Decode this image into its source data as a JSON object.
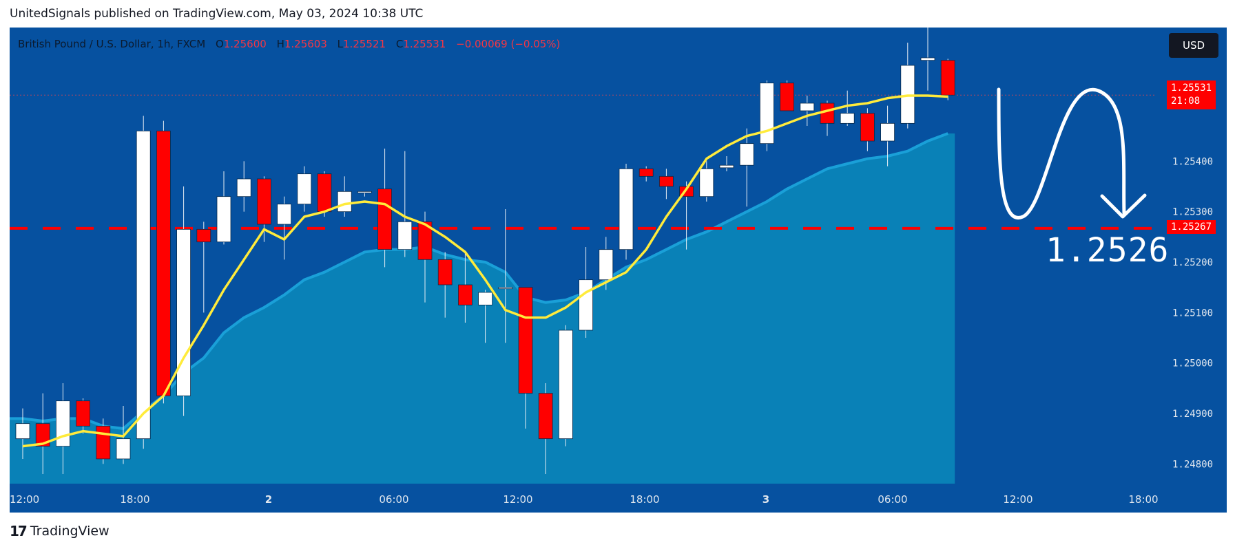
{
  "header": {
    "published_text": "UnitedSignals published on TradingView.com, May 03, 2024 10:38 UTC"
  },
  "legend": {
    "symbol": "British Pound / U.S. Dollar, 1h, FXCM",
    "o_label": "O",
    "o_value": "1.25600",
    "h_label": "H",
    "h_value": "1.25603",
    "l_label": "L",
    "l_value": "1.25521",
    "c_label": "C",
    "c_value": "1.25531",
    "change": "−0.00069 (−0.05%)"
  },
  "currency_button": "USD",
  "price_tags": {
    "last_price": "1.25531",
    "countdown": "21:08",
    "level": "1.25267"
  },
  "annotation": {
    "target_text": "1.2526"
  },
  "footer": {
    "brand": "TradingView"
  },
  "colors": {
    "background": "#0651a0",
    "bull": "#ffffff",
    "bear": "#ff0000",
    "ema_fast": "#ffeb3b",
    "area_fill": "#0a84b8",
    "level_line": "#ff0000"
  },
  "chart_data": {
    "type": "candlestick",
    "title": "British Pound / U.S. Dollar, 1h, FXCM",
    "x_tick_labels": [
      "12:00",
      "18:00",
      "2",
      "06:00",
      "12:00",
      "18:00",
      "3",
      "06:00",
      "12:00",
      "18:00"
    ],
    "y_tick_labels": [
      "1.25400",
      "1.25300",
      "1.25200",
      "1.25100",
      "1.25000",
      "1.24900",
      "1.24800"
    ],
    "ylim": [
      1.24765,
      1.25665
    ],
    "horizontal_level": 1.25267,
    "candles": [
      {
        "o": 1.2485,
        "h": 1.2491,
        "l": 1.2481,
        "c": 1.2488
      },
      {
        "o": 1.2488,
        "h": 1.2494,
        "l": 1.2478,
        "c": 1.24835
      },
      {
        "o": 1.24835,
        "h": 1.2496,
        "l": 1.2478,
        "c": 1.24925
      },
      {
        "o": 1.24925,
        "h": 1.2493,
        "l": 1.2486,
        "c": 1.24875
      },
      {
        "o": 1.24875,
        "h": 1.2489,
        "l": 1.248,
        "c": 1.2481
      },
      {
        "o": 1.2481,
        "h": 1.24915,
        "l": 1.248,
        "c": 1.2485
      },
      {
        "o": 1.2485,
        "h": 1.2549,
        "l": 1.2483,
        "c": 1.2546
      },
      {
        "o": 1.2546,
        "h": 1.2548,
        "l": 1.2492,
        "c": 1.24935
      },
      {
        "o": 1.24935,
        "h": 1.2535,
        "l": 1.24895,
        "c": 1.25265
      },
      {
        "o": 1.25265,
        "h": 1.2528,
        "l": 1.251,
        "c": 1.2524
      },
      {
        "o": 1.2524,
        "h": 1.2538,
        "l": 1.25235,
        "c": 1.2533
      },
      {
        "o": 1.2533,
        "h": 1.254,
        "l": 1.253,
        "c": 1.25365
      },
      {
        "o": 1.25365,
        "h": 1.2537,
        "l": 1.2524,
        "c": 1.25275
      },
      {
        "o": 1.25275,
        "h": 1.2533,
        "l": 1.25205,
        "c": 1.25315
      },
      {
        "o": 1.25315,
        "h": 1.2539,
        "l": 1.253,
        "c": 1.25375
      },
      {
        "o": 1.25375,
        "h": 1.2538,
        "l": 1.2529,
        "c": 1.253
      },
      {
        "o": 1.253,
        "h": 1.2537,
        "l": 1.2529,
        "c": 1.2534
      },
      {
        "o": 1.2534,
        "h": 1.2534,
        "l": 1.2533,
        "c": 1.2534
      },
      {
        "o": 1.25345,
        "h": 1.25425,
        "l": 1.2519,
        "c": 1.25225
      },
      {
        "o": 1.25225,
        "h": 1.2542,
        "l": 1.2521,
        "c": 1.2528
      },
      {
        "o": 1.2528,
        "h": 1.253,
        "l": 1.2512,
        "c": 1.25205
      },
      {
        "o": 1.25205,
        "h": 1.2522,
        "l": 1.2509,
        "c": 1.25155
      },
      {
        "o": 1.25155,
        "h": 1.2522,
        "l": 1.2508,
        "c": 1.25115
      },
      {
        "o": 1.25115,
        "h": 1.25145,
        "l": 1.2504,
        "c": 1.2514
      },
      {
        "o": 1.25148,
        "h": 1.25305,
        "l": 1.2504,
        "c": 1.2515
      },
      {
        "o": 1.2515,
        "h": 1.2515,
        "l": 1.2487,
        "c": 1.2494
      },
      {
        "o": 1.2494,
        "h": 1.2496,
        "l": 1.2478,
        "c": 1.2485
      },
      {
        "o": 1.2485,
        "h": 1.25075,
        "l": 1.24835,
        "c": 1.25065
      },
      {
        "o": 1.25065,
        "h": 1.2523,
        "l": 1.2505,
        "c": 1.25165
      },
      {
        "o": 1.25165,
        "h": 1.2525,
        "l": 1.25145,
        "c": 1.25225
      },
      {
        "o": 1.25225,
        "h": 1.25395,
        "l": 1.25205,
        "c": 1.25385
      },
      {
        "o": 1.25385,
        "h": 1.2539,
        "l": 1.2536,
        "c": 1.2537
      },
      {
        "o": 1.2537,
        "h": 1.25385,
        "l": 1.25325,
        "c": 1.2535
      },
      {
        "o": 1.2535,
        "h": 1.2536,
        "l": 1.25225,
        "c": 1.2533
      },
      {
        "o": 1.2533,
        "h": 1.254,
        "l": 1.2532,
        "c": 1.25385
      },
      {
        "o": 1.25387,
        "h": 1.2541,
        "l": 1.2538,
        "c": 1.25392
      },
      {
        "o": 1.25392,
        "h": 1.25465,
        "l": 1.2531,
        "c": 1.25435
      },
      {
        "o": 1.25435,
        "h": 1.2556,
        "l": 1.2542,
        "c": 1.25555
      },
      {
        "o": 1.25555,
        "h": 1.2556,
        "l": 1.255,
        "c": 1.255
      },
      {
        "o": 1.255,
        "h": 1.2553,
        "l": 1.2547,
        "c": 1.25515
      },
      {
        "o": 1.25515,
        "h": 1.2552,
        "l": 1.2545,
        "c": 1.25475
      },
      {
        "o": 1.25475,
        "h": 1.2554,
        "l": 1.2547,
        "c": 1.25495
      },
      {
        "o": 1.25495,
        "h": 1.25505,
        "l": 1.2542,
        "c": 1.2544
      },
      {
        "o": 1.2544,
        "h": 1.2551,
        "l": 1.2539,
        "c": 1.25475
      },
      {
        "o": 1.25475,
        "h": 1.25635,
        "l": 1.25465,
        "c": 1.2559
      },
      {
        "o": 1.256,
        "h": 1.25665,
        "l": 1.2554,
        "c": 1.25605
      },
      {
        "o": 1.256,
        "h": 1.25603,
        "l": 1.25521,
        "c": 1.25531
      }
    ],
    "ema_fast": [
      1.24835,
      1.2484,
      1.24855,
      1.24865,
      1.2486,
      1.24855,
      1.249,
      1.24935,
      1.2501,
      1.25075,
      1.25145,
      1.25205,
      1.25265,
      1.25245,
      1.2529,
      1.253,
      1.25315,
      1.2532,
      1.25315,
      1.2529,
      1.25275,
      1.2525,
      1.2522,
      1.25165,
      1.25105,
      1.2509,
      1.2509,
      1.2511,
      1.2514,
      1.2516,
      1.2518,
      1.25225,
      1.2529,
      1.25345,
      1.25405,
      1.2543,
      1.2545,
      1.2546,
      1.25475,
      1.2549,
      1.255,
      1.2551,
      1.25515,
      1.25525,
      1.2553,
      1.2553,
      1.25528
    ],
    "ema_slow": [
      1.2489,
      1.24885,
      1.2489,
      1.2489,
      1.24875,
      1.2487,
      1.24905,
      1.24935,
      1.2498,
      1.2501,
      1.2506,
      1.2509,
      1.2511,
      1.25135,
      1.25165,
      1.2518,
      1.252,
      1.2522,
      1.25225,
      1.25225,
      1.2523,
      1.25215,
      1.25205,
      1.252,
      1.2518,
      1.2513,
      1.2512,
      1.25125,
      1.2514,
      1.25165,
      1.2519,
      1.25205,
      1.25225,
      1.25245,
      1.2526,
      1.2528,
      1.253,
      1.2532,
      1.25345,
      1.25365,
      1.25385,
      1.25395,
      1.25405,
      1.2541,
      1.2542,
      1.2544,
      1.25455
    ]
  }
}
